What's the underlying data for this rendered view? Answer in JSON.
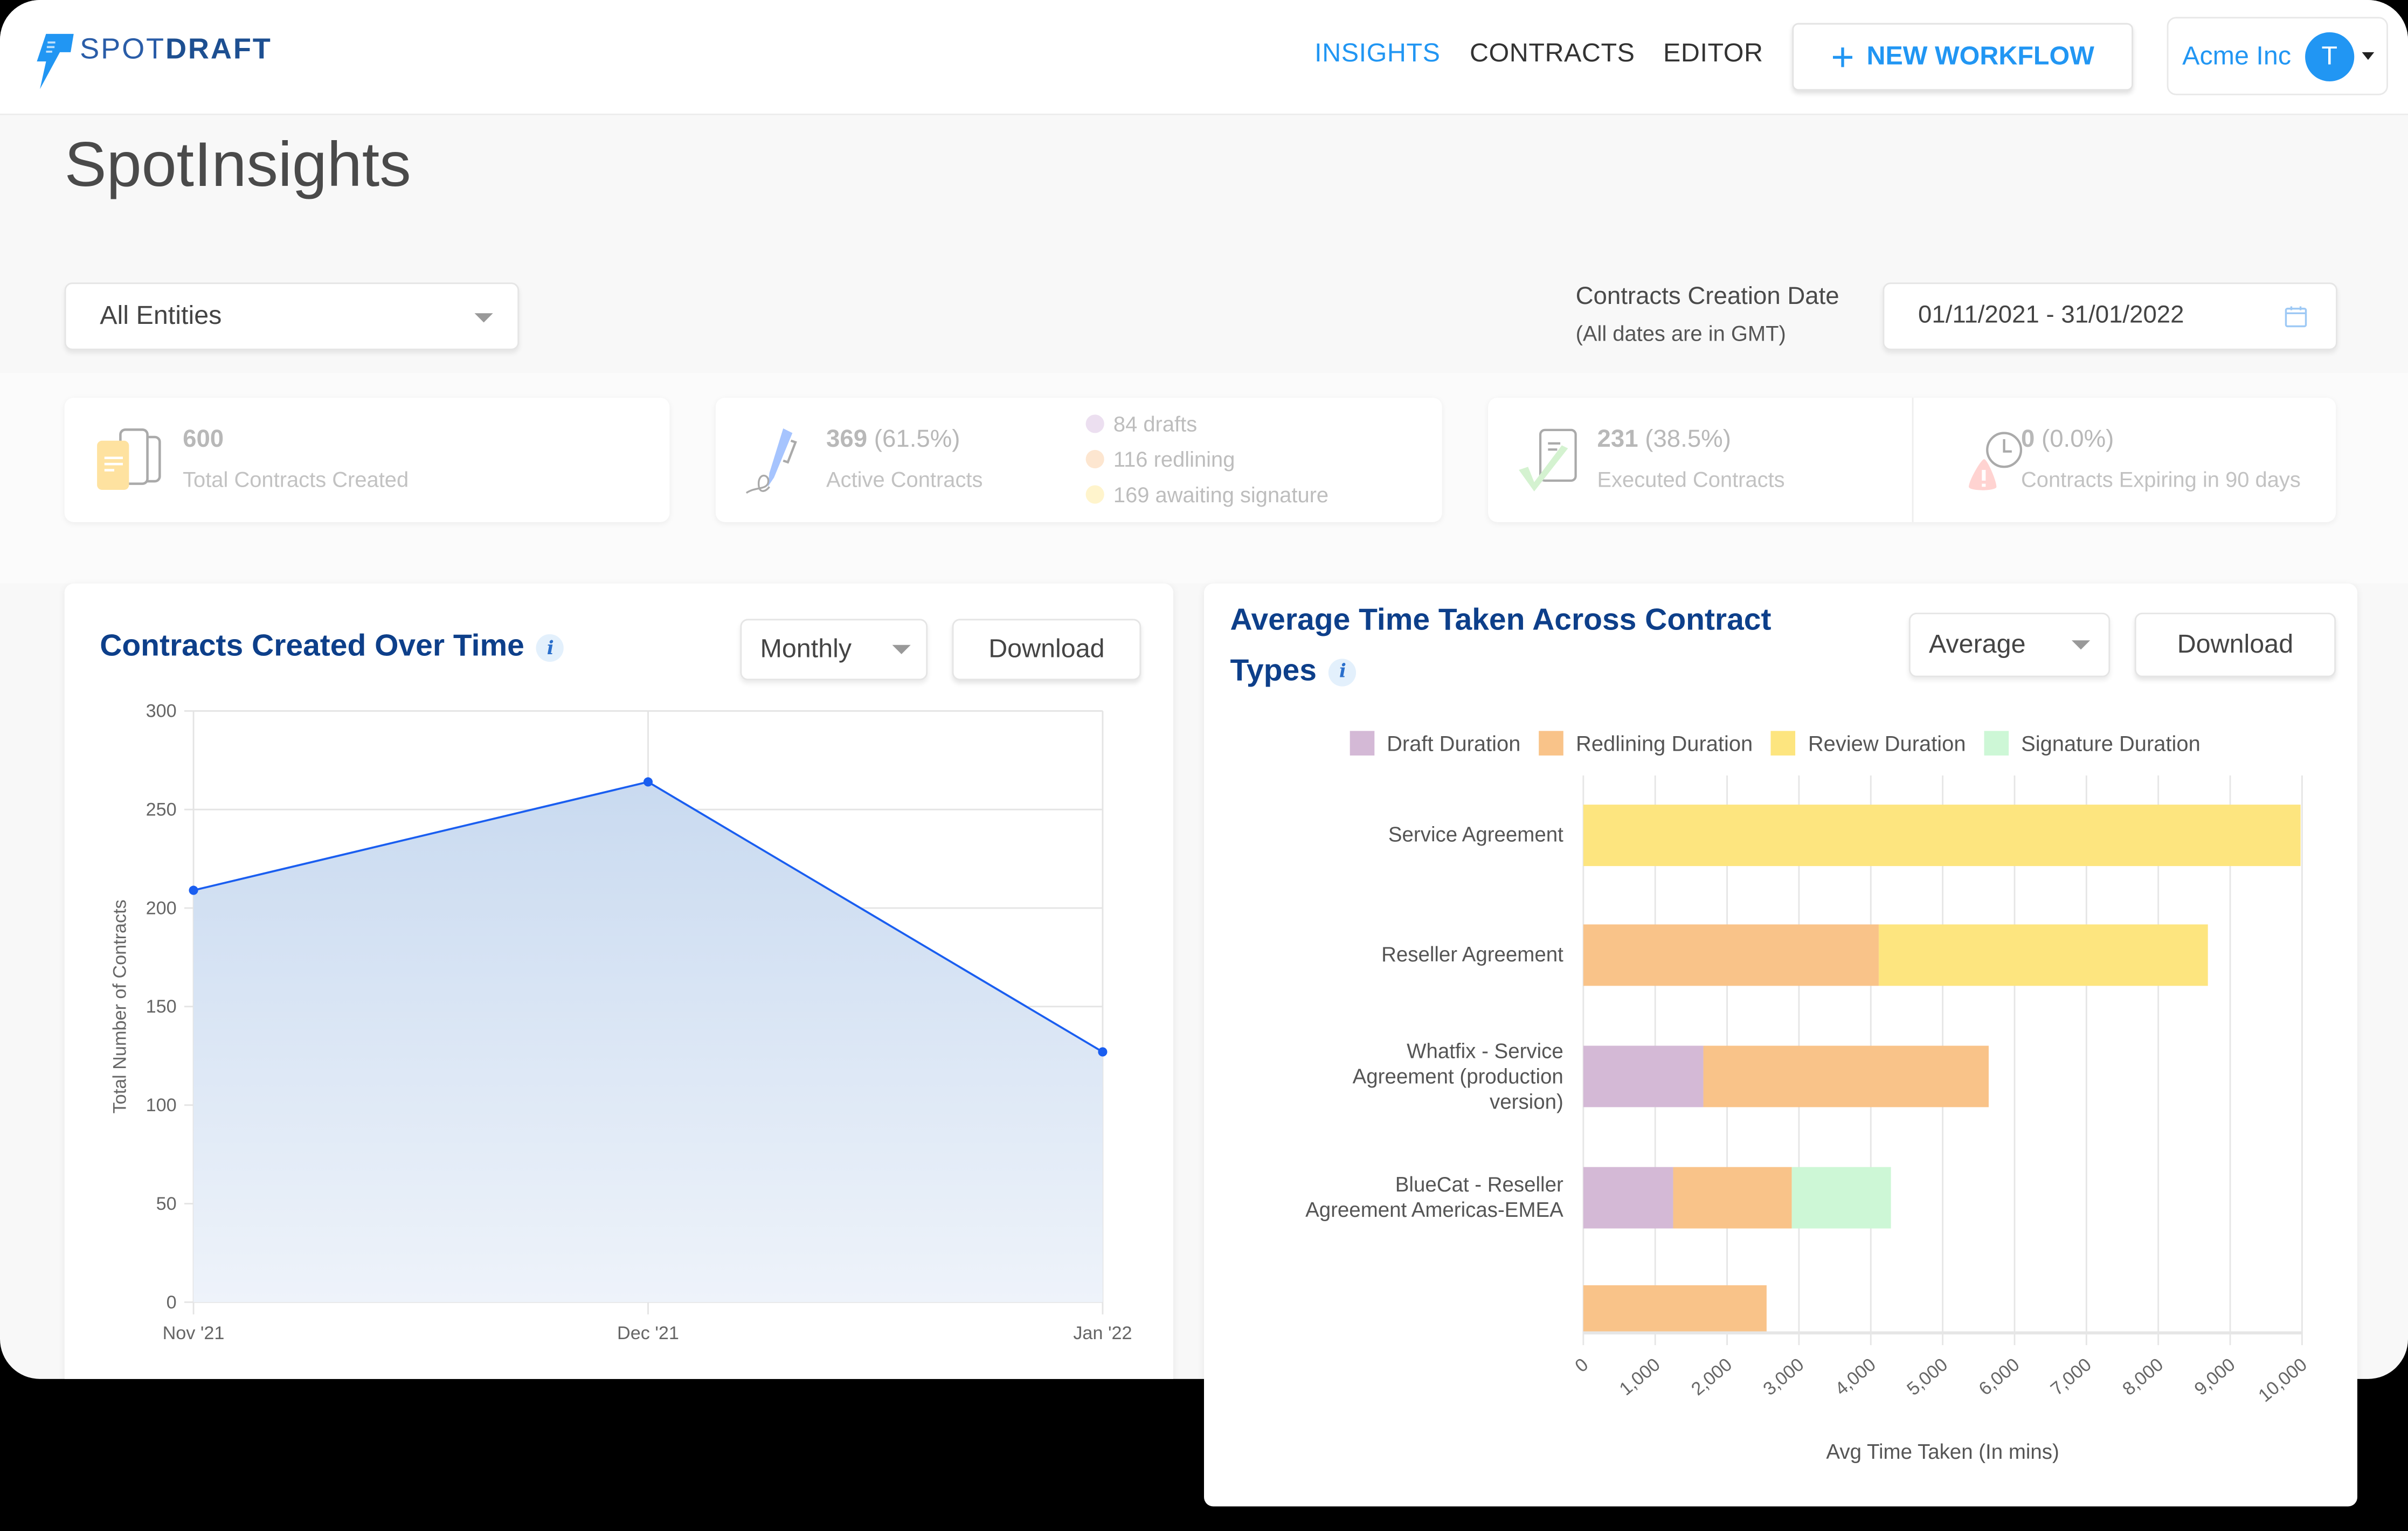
{
  "header": {
    "logo": {
      "spot": "SPOT",
      "draft": "DRAFT"
    },
    "nav": [
      {
        "label": "INSIGHTS",
        "active": true
      },
      {
        "label": "CONTRACTS",
        "active": false
      },
      {
        "label": "EDITOR",
        "active": false
      }
    ],
    "new_workflow_label": "NEW WORKFLOW",
    "account": {
      "org": "Acme Inc",
      "avatar_initial": "T"
    }
  },
  "page": {
    "title": "SpotInsights",
    "entity_filter": {
      "value": "All Entities"
    },
    "date_filter": {
      "label": "Contracts Creation Date",
      "sublabel": "(All dates are in GMT)",
      "value": "01/11/2021 - 31/01/2022",
      "icon": "calendar-icon"
    }
  },
  "stats": {
    "total": {
      "value": "600",
      "label": "Total Contracts Created",
      "icon": "documents-icon"
    },
    "active": {
      "value": "369",
      "pct": "(61.5%)",
      "label": "Active Contracts",
      "icon": "pen-signature-icon",
      "breakdown": [
        {
          "count": "84",
          "label": "drafts",
          "color": "#ecdff0"
        },
        {
          "count": "116",
          "label": "redlining",
          "color": "#fde6d0"
        },
        {
          "count": "169",
          "label": "awaiting signature",
          "color": "#fff4cc"
        }
      ]
    },
    "executed": {
      "value": "231",
      "pct": "(38.5%)",
      "label": "Executed Contracts",
      "icon": "document-check-icon"
    },
    "expiring": {
      "value": "0",
      "pct": "(0.0%)",
      "label": "Contracts Expiring in 90 days",
      "icon": "warning-clock-icon"
    }
  },
  "line_card": {
    "title": "Contracts Created Over Time",
    "period_select": "Monthly",
    "download_label": "Download"
  },
  "bar_card": {
    "title_line1": "Average Time Taken Across Contract",
    "title_line2": "Types",
    "agg_select": "Average",
    "download_label": "Download"
  },
  "colors": {
    "brand_blue": "#2196f3",
    "title_navy": "#0d3f8a",
    "line": "#1a5ef0",
    "area": "#cfdff2",
    "draft": "#d4b9d6",
    "redlining": "#f9c389",
    "review": "#fde57f",
    "signature": "#cdf7d6"
  },
  "chart_data": [
    {
      "type": "area",
      "title": "Contracts Created Over Time",
      "categories": [
        "Nov '21",
        "Dec '21",
        "Jan '22"
      ],
      "values": [
        209,
        264,
        127
      ],
      "xlabel": "",
      "ylabel": "Total Number of Contracts",
      "ylim": [
        0,
        300
      ],
      "yticks": [
        0,
        50,
        100,
        150,
        200,
        250,
        300
      ],
      "grid": true,
      "legend": null
    },
    {
      "type": "bar",
      "orientation": "horizontal",
      "stacked": true,
      "title": "Average Time Taken Across Contract Types",
      "categories": [
        "Service Agreement",
        "Reseller Agreement",
        "Whatfix - Service Agreement (production version)",
        "BlueCat - Reseller Agreement Americas-EMEA",
        ""
      ],
      "series": [
        {
          "name": "Draft Duration",
          "values": [
            0,
            0,
            1670,
            1250,
            0
          ]
        },
        {
          "name": "Redlining Duration",
          "values": [
            0,
            4110,
            3970,
            1650,
            2550
          ]
        },
        {
          "name": "Review Duration",
          "values": [
            9980,
            4580,
            0,
            0,
            0
          ]
        },
        {
          "name": "Signature Duration",
          "values": [
            0,
            0,
            0,
            1380,
            0
          ]
        }
      ],
      "xlabel": "Avg Time Taken (In mins)",
      "ylabel": "",
      "xlim": [
        0,
        10000
      ],
      "xticks": [
        "0",
        "1,000",
        "2,000",
        "3,000",
        "4,000",
        "5,000",
        "6,000",
        "7,000",
        "8,000",
        "9,000",
        "10,000"
      ],
      "legend_position": "top",
      "grid": true
    }
  ]
}
